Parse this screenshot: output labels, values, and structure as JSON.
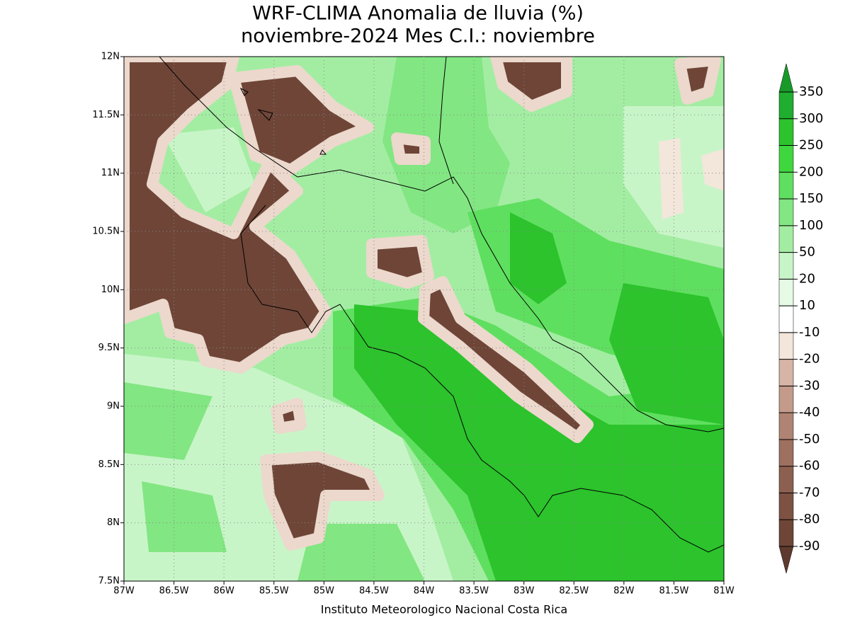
{
  "title": [
    "WRF-CLIMA Anomalia de lluvia (%)",
    "noviembre-2024 Mes C.I.: noviembre"
  ],
  "footer": "Instituto Meteorologico Nacional Costa Rica",
  "map": {
    "xlim": [
      -87,
      -81
    ],
    "xticks": [
      {
        "value": -87,
        "label": "87W"
      },
      {
        "value": -86.5,
        "label": "86.5W"
      },
      {
        "value": -86,
        "label": "86W"
      },
      {
        "value": -85.5,
        "label": "85.5W"
      },
      {
        "value": -85,
        "label": "85W"
      },
      {
        "value": -84.5,
        "label": "84.5W"
      },
      {
        "value": -84,
        "label": "84W"
      },
      {
        "value": -83.5,
        "label": "83.5W"
      },
      {
        "value": -83,
        "label": "83W"
      },
      {
        "value": -82.5,
        "label": "82.5W"
      },
      {
        "value": -82,
        "label": "82W"
      },
      {
        "value": -81.5,
        "label": "81.5W"
      },
      {
        "value": -81,
        "label": "81W"
      }
    ],
    "ylim": [
      7.5,
      12
    ],
    "yticks": [
      {
        "value": 7.5,
        "label": "7.5N"
      },
      {
        "value": 8,
        "label": "8N"
      },
      {
        "value": 8.5,
        "label": "8.5N"
      },
      {
        "value": 9,
        "label": "9N"
      },
      {
        "value": 9.5,
        "label": "9.5N"
      },
      {
        "value": 10,
        "label": "10N"
      },
      {
        "value": 10.5,
        "label": "10.5N"
      },
      {
        "value": 11,
        "label": "11N"
      },
      {
        "value": 11.5,
        "label": "11.5N"
      },
      {
        "value": 12,
        "label": "12N"
      }
    ],
    "grid": true
  },
  "colorbar": {
    "levels": [
      -90,
      -80,
      -70,
      -60,
      -50,
      -40,
      -30,
      -20,
      -10,
      10,
      20,
      50,
      100,
      150,
      200,
      250,
      300,
      350
    ],
    "colors": [
      "#5e3a2e",
      "#6e4537",
      "#7d5243",
      "#8c6050",
      "#9e7060",
      "#b08474",
      "#c49a8a",
      "#d6b4a6",
      "#f3e6da",
      "#ffffff",
      "#e6fbe6",
      "#c8f5c8",
      "#a3eda3",
      "#82e682",
      "#5fdf5f",
      "#3ed83e",
      "#2cc32c",
      "#1fae2f",
      "#189a28"
    ]
  }
}
